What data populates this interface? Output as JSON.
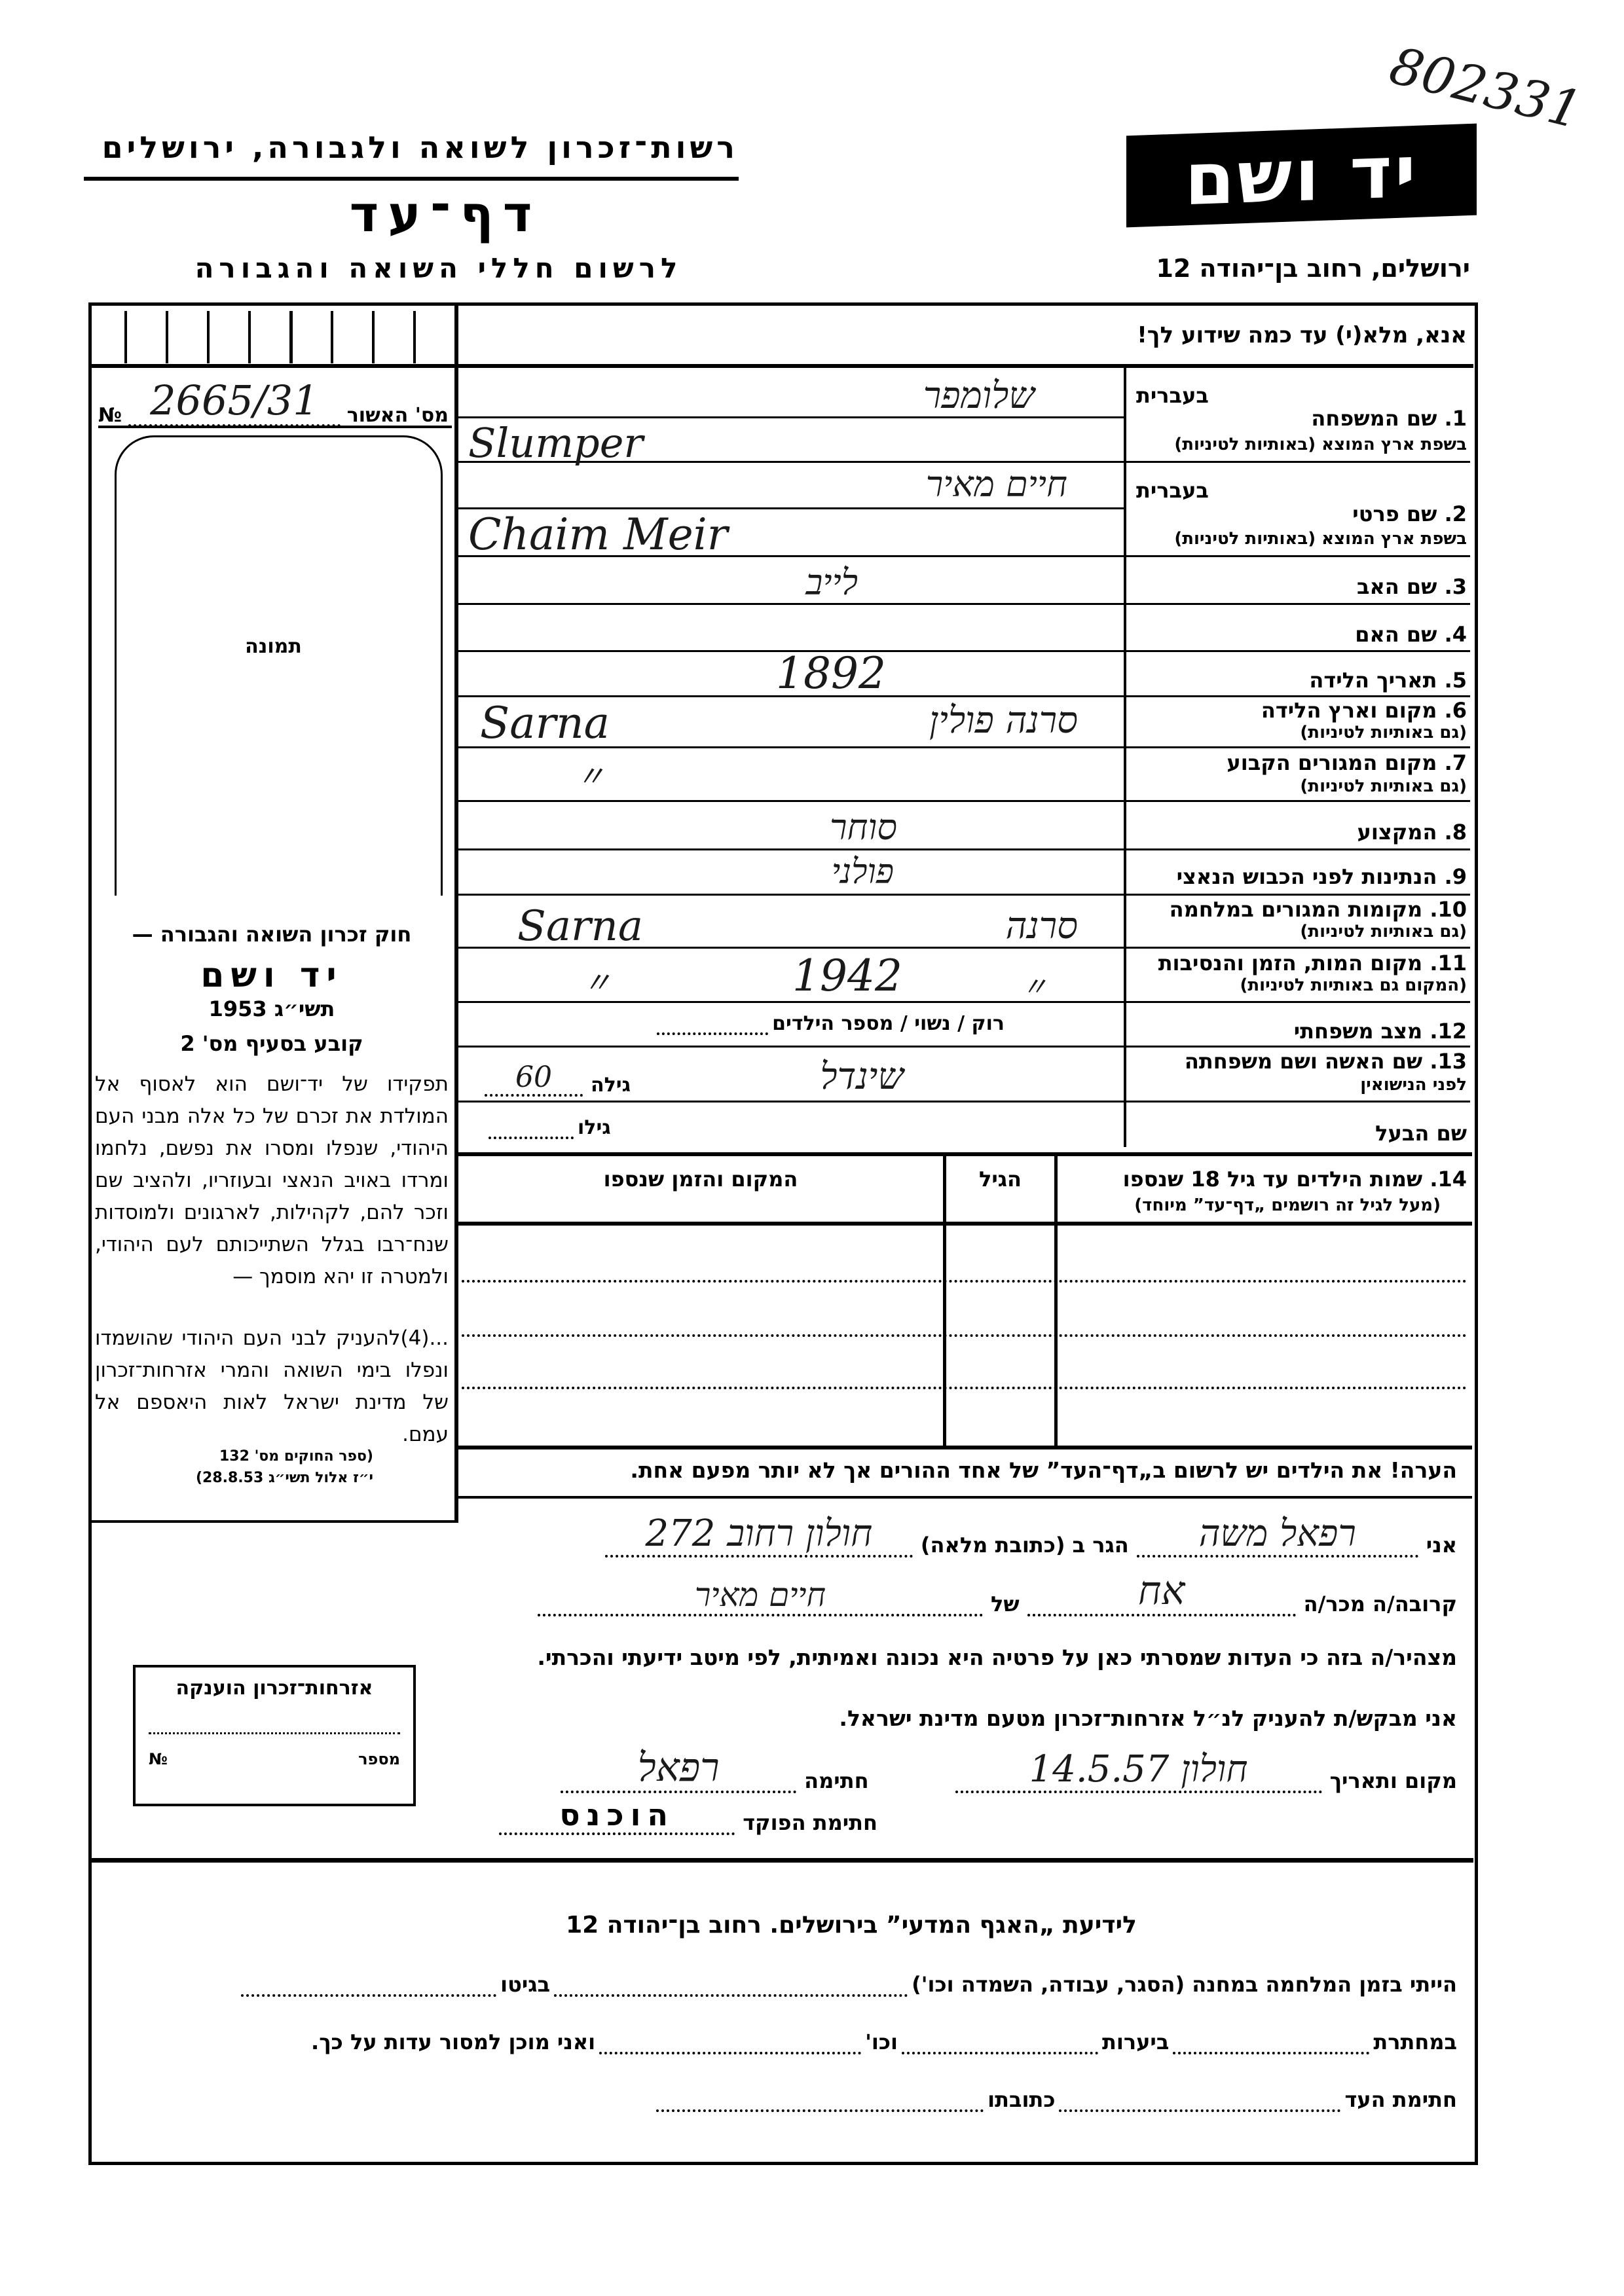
{
  "header": {
    "archive_number": "802331",
    "org_name": "רשות־זכרון לשואה ולגבורה, ירושלים",
    "form_title": "דף־עד",
    "form_subtitle": "לרשום חללי השואה והגבורה",
    "logo_text": "יד ושם",
    "address": "ירושלים, רחוב בן־יהודה 12"
  },
  "instructions": "אנא, מלא(י) עד כמה שידוע לך!",
  "left_panel": {
    "approval_label": "מס' האשור",
    "number_sign": "№",
    "approval_number": "2665/31",
    "photo_label": "תמונה",
    "law_title": "חוק זכרון השואה והגבורה —",
    "law_name": "יד ושם",
    "law_year": "תשי״ג 1953",
    "law_section": "קובע בסעיף מס' 2",
    "law_text": "תפקידו של יד־ושם הוא לאסוף אל המולדת את זכרם של כל אלה מבני העם היהודי, שנפלו ומסרו את נפשם, נלחמו ומרדו באויב הנאצי ובעוזריו, ולהציב שם וזכר להם, לקהילות, לארגונים ולמוסדות שנח־רבו בגלל השתייכותם לעם היהודי, ולמטרה זו יהא מוסמך —",
    "law_text_2": "...(4)להעניק לבני העם היהודי שהושמדו ונפלו בימי השואה והמרי אזרחות־זכרון של מדינת ישראל לאות היאספם אל עמם.",
    "law_ref_1": "(ספר החוקים מס' 132",
    "law_ref_2": "י״ז אלול תשי״ג 28.8.53)",
    "citizenship_box_title": "אזרחות־זכרון הוענקה",
    "citizenship_number_label": "מספר",
    "citizenship_number_sign": "№"
  },
  "fields": {
    "hebrew_label": "בעברית",
    "latin_hint": "בשפת ארץ המוצא (באותיות לטיניות)",
    "latin_hint_also": "(גם באותיות לטיניות)",
    "f1_label": "1.  שם המשפחה",
    "f1_hebrew": "שלומפר",
    "f1_latin": "Slumper",
    "f2_label": "2.  שם פרטי",
    "f2_hebrew": "חיים מאיר",
    "f2_latin": "Chaim Meir",
    "f3_label": "3.  שם האב",
    "f3_value": "לייב",
    "f4_label": "4.  שם האם",
    "f5_label": "5.  תאריך הלידה",
    "f5_value": "1892",
    "f6_label": "6.  מקום וארץ הלידה",
    "f6_latin": "Sarna",
    "f6_hebrew": "סרנה פולין",
    "f7_label": "7.  מקום המגורים הקבוע",
    "f7_value": "〃",
    "f8_label": "8.  המקצוע",
    "f8_value": "סוחר",
    "f9_label": "9.  הנתינות לפני הכבוש הנאצי",
    "f9_value": "פולני",
    "f10_label": "10. מקומות המגורים במלחמה",
    "f10_latin": "Sarna",
    "f10_hebrew": "סרנה",
    "f11_label": "11. מקום המות, הזמן והנסיבות",
    "f11_hint": "(המקום גם באותיות לטיניות)",
    "f11_place": "〃",
    "f11_year": "1942",
    "f11_circ": "〃",
    "f12_label": "12. מצב משפחתי",
    "f12_options": "רוק / נשוי / מספר הילדים",
    "f13_label": "13. שם האשה ושם משפחתה",
    "f13_hint": "לפני הנישואין",
    "f13_value": "שינדל",
    "wife_age_label": "גילה",
    "wife_age": "60",
    "husband_label": "שם הבעל",
    "husband_age_label": "גילו"
  },
  "children": {
    "label": "14. שמות הילדים עד גיל 18 שנספו",
    "hint": "(מעל לגיל זה רושמים „דף־עד” מיוחד)",
    "age_header": "הגיל",
    "place_header": "המקום והזמן שנספו",
    "note": "הערה!   את הילדים יש לרשום ב„דף־העד” של אחד ההורים אך לא יותר מפעם אחת."
  },
  "declaration": {
    "i_label": "אני",
    "declarant_name": "רפאל משה",
    "address_label": "הגר ב (כתובת מלאה)",
    "address_value": "חולון רחוב 272",
    "relation_label": "קרובה/ה מכר/ה",
    "relation_value": "אח",
    "of_label": "של",
    "relation_of": "חיים מאיר",
    "statement": "מצהיר/ה בזה כי העדות שמסרתי כאן על פרטיה היא נכונה ואמיתית, לפי מיטב ידיעתי והכרתי.",
    "request": "אני מבקש/ת להעניק לנ״ל אזרחות־זכרון מטעם מדינת ישראל.",
    "place_date_label": "מקום ותאריך",
    "place_date_value": "חולון 14.5.57",
    "signature_label": "חתימה",
    "signature_value": "רפאל",
    "officer_label": "חתימת הפוקד",
    "stamp_text": "הוכנס"
  },
  "footer": {
    "title": "לידיעת „האגף המדעי” בירושלים.  רחוב בן־יהודה 12",
    "line1_a": "הייתי בזמן המלחמה במחנה (הסגר, עבודה, השמדה וכו')",
    "line1_b": "בגיטו",
    "line2_a": "במחתרת",
    "line2_b": "ביערות",
    "line2_c": "וכו'",
    "line2_d": "ואני מוכן למסור עדות על כך.",
    "line3_a": "חתימת העד",
    "line3_b": "כתובתו"
  }
}
